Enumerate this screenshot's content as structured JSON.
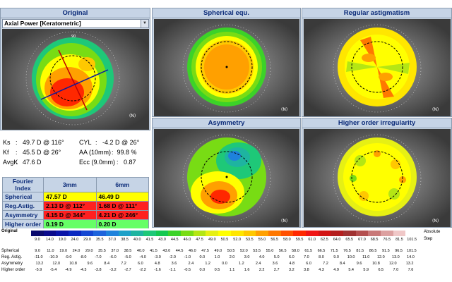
{
  "panels": {
    "original": {
      "title": "Original"
    },
    "spherical": {
      "title": "Spherical equ."
    },
    "regular": {
      "title": "Regular astigmatism"
    },
    "asymmetry": {
      "title": "Asymmetry"
    },
    "higher": {
      "title": "Higher order irregularity"
    }
  },
  "map_select": {
    "value": "Axial Power [Keratometric]"
  },
  "keratometry": {
    "ks_label": "Ks",
    "ks_value": ":   49.7 D @ 116°",
    "cyl_label": "CYL",
    "cyl_value": ":   -4.2 D @ 26°",
    "kf_label": "Kf",
    "kf_value": ":   45.5 D @ 26°",
    "aa_label": "AA (10mm)",
    "aa_value": ":  99.8 %",
    "avgk_label": "AvgK",
    "avgk_value": ":   47.6 D",
    "ecc_label": "Ecc (9.0mm)",
    "ecc_value": ":   0.87"
  },
  "fourier": {
    "header": [
      "Fourier Index",
      "3mm",
      "6mm"
    ],
    "rows": [
      {
        "label": "Spherical",
        "v3": "47.57 D",
        "v6": "46.49 D",
        "c3": "#ffff00",
        "c6": "#ffff00"
      },
      {
        "label": "Reg.Astig.",
        "v3": "2.13 D @ 112°",
        "v6": "1.68 D @ 111°",
        "c3": "#ff2020",
        "c6": "#ff2020"
      },
      {
        "label": "Asymmetry",
        "v3": "4.15 D @ 344°",
        "v6": "4.21 D @ 246°",
        "c3": "#ff2020",
        "c6": "#ff2020"
      },
      {
        "label": "Higher order",
        "v3": "0.19 D",
        "v6": "0.20 D",
        "c3": "#66ff66",
        "c6": "#66ff66"
      }
    ]
  },
  "map_labels": {
    "eye": "(N)"
  },
  "scale": {
    "label_original": "Original",
    "absolute": "Absolute",
    "step": "Step",
    "colors": [
      "#0a0a6e",
      "#0a0a8c",
      "#0a14a8",
      "#0a28c0",
      "#1446d2",
      "#1e64dc",
      "#1e82dc",
      "#1ea0c8",
      "#1eb4a0",
      "#1ec878",
      "#14c850",
      "#3cd228",
      "#78dc14",
      "#b4e614",
      "#e6f014",
      "#ffff00",
      "#ffe600",
      "#ffc800",
      "#ffa000",
      "#ff7800",
      "#ff5000",
      "#ff2800",
      "#f01414",
      "#d21414",
      "#b41e1e",
      "#a03232",
      "#b45050",
      "#c87878",
      "#dca0a0",
      "#f0c8c8",
      "#ffffff"
    ],
    "original_values": [
      "9.0",
      "14.0",
      "19.0",
      "24.0",
      "29.0",
      "35.5",
      "37.0",
      "38.5",
      "40.0",
      "41.5",
      "43.0",
      "44.5",
      "46.0",
      "47.5",
      "49.0",
      "50.5",
      "52.0",
      "53.5",
      "55.0",
      "56.5",
      "58.0",
      "59.5",
      "61.0",
      "62.5",
      "64.0",
      "65.5",
      "67.0",
      "68.5",
      "76.5",
      "81.5",
      "101.5"
    ],
    "row_labels": [
      "Spherical",
      "Reg. Astig.",
      "Asymmetry",
      "Higher order"
    ],
    "rows": [
      [
        "9.0",
        "11.0",
        "19.0",
        "24.0",
        "29.0",
        "35.5",
        "37.0",
        "38.5",
        "40.0",
        "41.5",
        "43.0",
        "44.5",
        "46.0",
        "47.5",
        "49.0",
        "50.5",
        "52.0",
        "53.5",
        "55.0",
        "56.5",
        "58.0",
        "61.5",
        "66.5",
        "71.5",
        "76.5",
        "81.5",
        "86.5",
        "91.5",
        "96.5",
        "101.5"
      ],
      [
        "-11.0",
        "-10.0",
        "-9.0",
        "-8.0",
        "-7.0",
        "-6.0",
        "-5.0",
        "-4.0",
        "-3.0",
        "-2.0",
        "-1.0",
        "0.0",
        "1.0",
        "2.0",
        "3.0",
        "4.0",
        "5.0",
        "6.0",
        "7.0",
        "8.0",
        "9.0",
        "10.0",
        "11.0",
        "12.0",
        "13.0",
        "14.0"
      ],
      [
        "13.2",
        "12.0",
        "10.8",
        "9.6",
        "8.4",
        "7.2",
        "6.0",
        "4.8",
        "3.6",
        "2.4",
        "1.2",
        "0.0",
        "1.2",
        "2.4",
        "3.6",
        "4.8",
        "6.0",
        "7.2",
        "8.4",
        "9.6",
        "10.8",
        "12.0",
        "13.2"
      ],
      [
        "-5.9",
        "-5.4",
        "-4.9",
        "-4.3",
        "-3.8",
        "-3.2",
        "-2.7",
        "-2.2",
        "-1.6",
        "-1.1",
        "-0.5",
        "0.0",
        "0.5",
        "1.1",
        "1.6",
        "2.2",
        "2.7",
        "3.2",
        "3.8",
        "4.3",
        "4.9",
        "5.4",
        "5.9",
        "6.5",
        "7.0",
        "7.6"
      ]
    ]
  }
}
